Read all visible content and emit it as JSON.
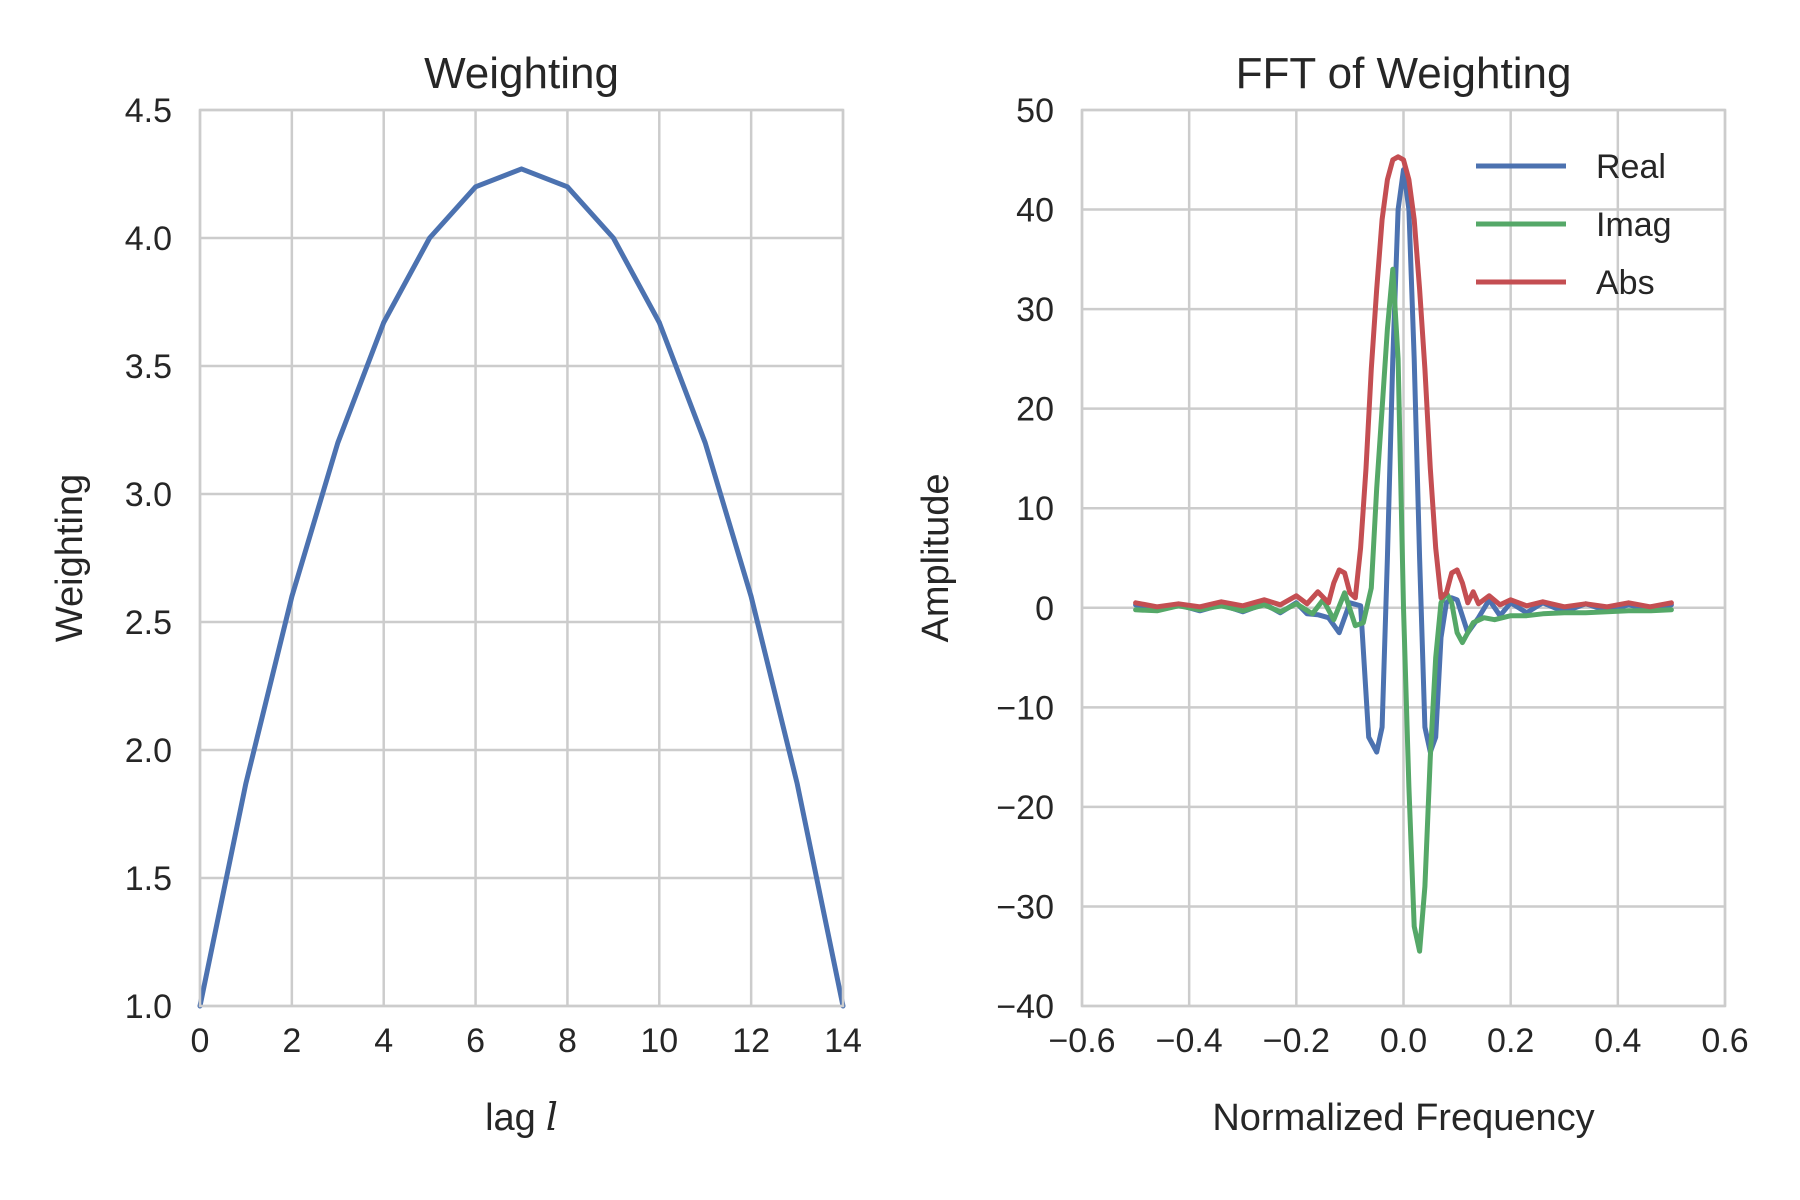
{
  "chart_data": [
    {
      "type": "line",
      "title": "Weighting",
      "xlabel_text": "lag",
      "xlabel_symbol": "l",
      "ylabel": "Weighting",
      "xlim": [
        0,
        14
      ],
      "ylim": [
        1.0,
        4.5
      ],
      "xticks": [
        "0",
        "2",
        "4",
        "6",
        "8",
        "10",
        "12",
        "14"
      ],
      "yticks": [
        "1.0",
        "1.5",
        "2.0",
        "2.5",
        "3.0",
        "3.5",
        "4.0",
        "4.5"
      ],
      "grid": true,
      "series": [
        {
          "color": "#4c72b0",
          "x": [
            0,
            1,
            2,
            3,
            4,
            5,
            6,
            7,
            8,
            9,
            10,
            11,
            12,
            13,
            14
          ],
          "y": [
            1.0,
            1.87,
            2.6,
            3.2,
            3.67,
            4.0,
            4.2,
            4.27,
            4.2,
            4.0,
            3.67,
            3.2,
            2.6,
            1.87,
            1.0
          ]
        }
      ]
    },
    {
      "type": "line",
      "title": "FFT of Weighting",
      "xlabel": "Normalized Frequency",
      "ylabel": "Amplitude",
      "xlim": [
        -0.6,
        0.6
      ],
      "ylim": [
        -40,
        50
      ],
      "xticks": [
        "−0.6",
        "−0.4",
        "−0.2",
        "0.0",
        "0.2",
        "0.4",
        "0.6"
      ],
      "yticks": [
        "−40",
        "−30",
        "−20",
        "−10",
        "0",
        "10",
        "20",
        "30",
        "40",
        "50"
      ],
      "grid": true,
      "legend_position": "top-right",
      "series": [
        {
          "name": "Real",
          "color": "#4c72b0",
          "x": [
            -0.5,
            -0.46,
            -0.42,
            -0.38,
            -0.34,
            -0.3,
            -0.26,
            -0.23,
            -0.2,
            -0.18,
            -0.16,
            -0.14,
            -0.12,
            -0.1,
            -0.08,
            -0.065,
            -0.05,
            -0.04,
            -0.03,
            -0.02,
            -0.01,
            0.0,
            0.01,
            0.02,
            0.03,
            0.04,
            0.05,
            0.06,
            0.07,
            0.08,
            0.09,
            0.1,
            0.12,
            0.14,
            0.16,
            0.18,
            0.2,
            0.23,
            0.26,
            0.3,
            0.34,
            0.38,
            0.42,
            0.46,
            0.5
          ],
          "y": [
            0.3,
            -0.2,
            0.3,
            -0.3,
            0.3,
            -0.4,
            0.4,
            -0.5,
            0.5,
            -0.6,
            -0.7,
            -1.0,
            -2.5,
            0.5,
            0.2,
            -13,
            -14.5,
            -12,
            5,
            25,
            40,
            44,
            40,
            25,
            5,
            -12,
            -14.5,
            -13,
            -3,
            0.5,
            1.0,
            0.8,
            -2.5,
            -1.0,
            0.8,
            -0.8,
            0.5,
            -0.5,
            0.5,
            -0.4,
            0.4,
            -0.3,
            0.3,
            -0.2,
            0.3
          ]
        },
        {
          "name": "Imag",
          "color": "#55a868",
          "x": [
            -0.5,
            -0.46,
            -0.42,
            -0.38,
            -0.34,
            -0.3,
            -0.26,
            -0.23,
            -0.2,
            -0.17,
            -0.15,
            -0.13,
            -0.11,
            -0.09,
            -0.075,
            -0.06,
            -0.05,
            -0.04,
            -0.03,
            -0.02,
            -0.01,
            0.0,
            0.01,
            0.02,
            0.03,
            0.04,
            0.05,
            0.06,
            0.07,
            0.08,
            0.09,
            0.1,
            0.11,
            0.13,
            0.15,
            0.17,
            0.2,
            0.23,
            0.26,
            0.3,
            0.34,
            0.38,
            0.42,
            0.46,
            0.5
          ],
          "y": [
            -0.2,
            -0.3,
            0.2,
            -0.2,
            0.2,
            -0.3,
            0.3,
            -0.4,
            0.4,
            -0.6,
            0.8,
            -1.2,
            1.5,
            -1.8,
            -1.5,
            2,
            12,
            20,
            28,
            34,
            25,
            0,
            -18,
            -32,
            -34.5,
            -28,
            -15,
            -5,
            0.5,
            1.5,
            0.5,
            -2.5,
            -3.5,
            -1.5,
            -1.0,
            -1.2,
            -0.8,
            -0.8,
            -0.6,
            -0.5,
            -0.5,
            -0.4,
            -0.3,
            -0.3,
            -0.2
          ]
        },
        {
          "name": "Abs",
          "color": "#c44e52",
          "x": [
            -0.5,
            -0.46,
            -0.42,
            -0.38,
            -0.34,
            -0.3,
            -0.26,
            -0.23,
            -0.2,
            -0.18,
            -0.16,
            -0.14,
            -0.13,
            -0.12,
            -0.11,
            -0.1,
            -0.09,
            -0.08,
            -0.07,
            -0.06,
            -0.05,
            -0.04,
            -0.03,
            -0.02,
            -0.01,
            0.0,
            0.01,
            0.02,
            0.03,
            0.04,
            0.05,
            0.06,
            0.07,
            0.08,
            0.09,
            0.1,
            0.11,
            0.12,
            0.13,
            0.14,
            0.16,
            0.18,
            0.2,
            0.23,
            0.26,
            0.3,
            0.34,
            0.38,
            0.42,
            0.46,
            0.5
          ],
          "y": [
            0.5,
            0.1,
            0.4,
            0.1,
            0.6,
            0.2,
            0.8,
            0.3,
            1.2,
            0.4,
            1.6,
            0.5,
            2.5,
            3.8,
            3.5,
            1.5,
            1.0,
            6,
            14,
            24,
            32,
            39,
            43,
            45,
            45.3,
            45,
            43,
            39,
            32,
            24,
            14,
            6,
            1.0,
            1.5,
            3.5,
            3.8,
            2.5,
            0.5,
            1.6,
            0.4,
            1.2,
            0.3,
            0.8,
            0.2,
            0.6,
            0.1,
            0.4,
            0.1,
            0.5,
            0.1,
            0.5
          ]
        }
      ]
    }
  ]
}
